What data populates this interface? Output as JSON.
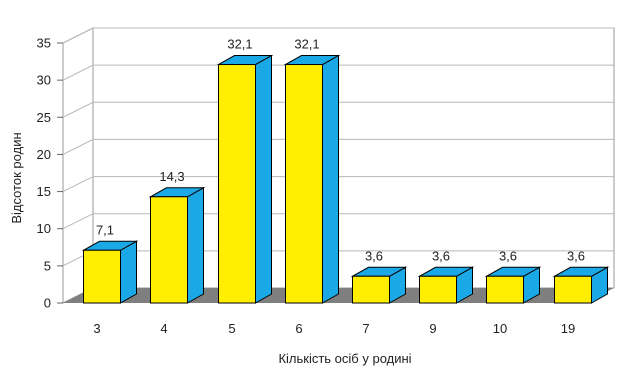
{
  "chart_data": {
    "type": "bar",
    "style": "3d",
    "categories": [
      "3",
      "4",
      "5",
      "6",
      "7",
      "9",
      "10",
      "19"
    ],
    "values": [
      7.1,
      14.3,
      32.1,
      32.1,
      3.6,
      3.6,
      3.6,
      3.6
    ],
    "data_labels": [
      "7,1",
      "14,3",
      "32,1",
      "32,1",
      "3,6",
      "3,6",
      "3,6",
      "3,6"
    ],
    "title": "",
    "xlabel": "Кількість осіб у родині",
    "ylabel": "Відсоток родин",
    "ylim": [
      0,
      35
    ],
    "yticks": [
      0,
      5,
      10,
      15,
      20,
      25,
      30,
      35
    ],
    "grid": true,
    "colors": {
      "front": "#ffee00",
      "side": "#1aa9e6",
      "top": "#1aa9e6",
      "floor": "#7f7f7f",
      "wall": "#ffffff",
      "grid": "#b8b8b8"
    }
  }
}
